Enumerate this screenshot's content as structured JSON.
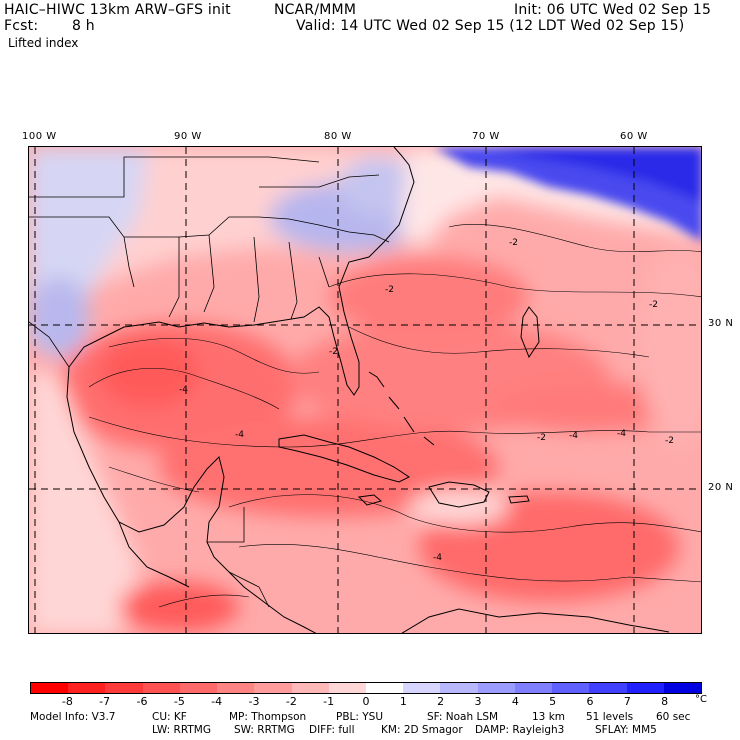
{
  "header": {
    "model": "HAIC–HIWC 13km ARW–GFS init",
    "center": "NCAR/MMM",
    "init": "Init: 06 UTC Wed 02 Sep 15",
    "fcst_label": "Fcst:",
    "fcst_value": "8 h",
    "valid": "Valid: 14 UTC Wed 02 Sep 15 (12 LDT Wed 02 Sep 15)",
    "field": "Lifted index"
  },
  "map": {
    "lon_labels": [
      "100 W",
      "90 W",
      "80 W",
      "70 W",
      "60 W"
    ],
    "lat_labels": [
      "30 N",
      "20 N"
    ],
    "contour_labels": [
      "-2",
      "-2",
      "-2",
      "-2",
      "-4",
      "-4",
      "-4",
      "-2",
      "-4",
      "-4",
      "-2"
    ]
  },
  "colorbar": {
    "labels": [
      "-8",
      "-7",
      "-6",
      "-5",
      "-4",
      "-3",
      "-2",
      "-1",
      "0",
      "1",
      "2",
      "3",
      "4",
      "5",
      "6",
      "7",
      "8"
    ],
    "unit": "°C",
    "colors": [
      "#ff0000",
      "#ff2020",
      "#ff3a3a",
      "#ff5252",
      "#ff6a6a",
      "#ff8484",
      "#ff9c9c",
      "#ffb8b8",
      "#ffd6d6",
      "#ffffff",
      "#d6d6ff",
      "#b8b8ff",
      "#9c9cff",
      "#8080ff",
      "#6060ff",
      "#4040ff",
      "#2020ff",
      "#0000e0"
    ]
  },
  "model_info": {
    "line1": [
      "Model Info: V3.7",
      "CU: KF",
      "MP: Thompson",
      "PBL: YSU",
      "SF: Noah LSM",
      "13 km",
      "51 levels",
      "60 sec"
    ],
    "line2": [
      "LW: RRTMG",
      "SW: RRTMG",
      "DIFF: full",
      "KM: 2D Smagor",
      "DAMP: Rayleigh3",
      "SFLAY: MM5"
    ]
  }
}
